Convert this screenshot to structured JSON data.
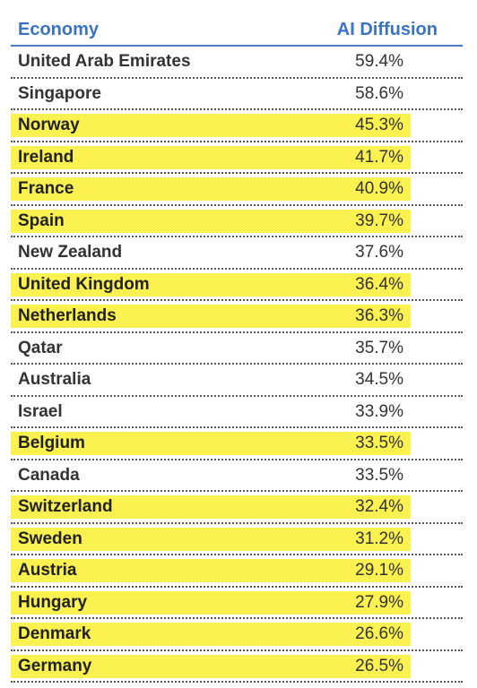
{
  "header": {
    "economy": "Economy",
    "diffusion": "AI Diffusion"
  },
  "rows": [
    {
      "name": "United Arab Emirates",
      "value": "59.4%",
      "highlight": false
    },
    {
      "name": "Singapore",
      "value": "58.6%",
      "highlight": false
    },
    {
      "name": "Norway",
      "value": "45.3%",
      "highlight": true
    },
    {
      "name": "Ireland",
      "value": "41.7%",
      "highlight": true
    },
    {
      "name": "France",
      "value": "40.9%",
      "highlight": true
    },
    {
      "name": "Spain",
      "value": "39.7%",
      "highlight": true
    },
    {
      "name": "New Zealand",
      "value": "37.6%",
      "highlight": false
    },
    {
      "name": "United Kingdom",
      "value": "36.4%",
      "highlight": true
    },
    {
      "name": "Netherlands",
      "value": "36.3%",
      "highlight": true
    },
    {
      "name": "Qatar",
      "value": "35.7%",
      "highlight": false
    },
    {
      "name": "Australia",
      "value": "34.5%",
      "highlight": false
    },
    {
      "name": "Israel",
      "value": "33.9%",
      "highlight": false
    },
    {
      "name": "Belgium",
      "value": "33.5%",
      "highlight": true
    },
    {
      "name": "Canada",
      "value": "33.5%",
      "highlight": false
    },
    {
      "name": "Switzerland",
      "value": "32.4%",
      "highlight": true
    },
    {
      "name": "Sweden",
      "value": "31.2%",
      "highlight": true
    },
    {
      "name": "Austria",
      "value": "29.1%",
      "highlight": true
    },
    {
      "name": "Hungary",
      "value": "27.9%",
      "highlight": true
    },
    {
      "name": "Denmark",
      "value": "26.6%",
      "highlight": true
    },
    {
      "name": "Germany",
      "value": "26.5%",
      "highlight": true
    }
  ],
  "colors": {
    "header_text": "#3b73c4",
    "header_rule": "#4a7cc4",
    "highlight": "#fbf151",
    "text": "#333333"
  }
}
